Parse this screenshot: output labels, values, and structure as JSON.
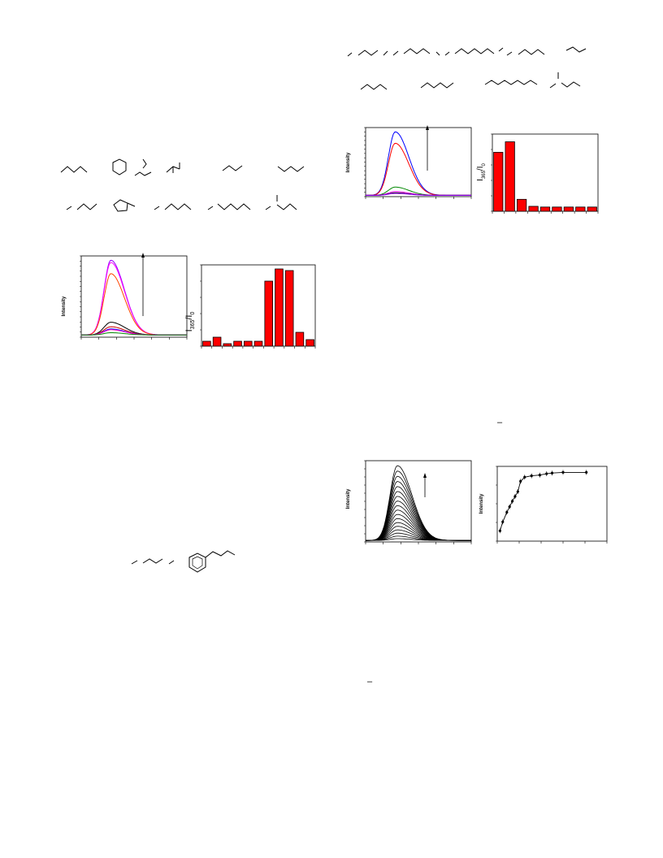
{
  "colors": {
    "bar_fill": "#ff0000",
    "bar_stroke": "#000000"
  },
  "left_column": {
    "figure_a": {
      "spectra_ylabel": "Intensity",
      "bar_ylabel_main": "I",
      "bar_ylabel_sub1": "365",
      "bar_ylabel_mid": "/I",
      "bar_ylabel_sub2": "0"
    }
  },
  "right_column": {
    "figure_b": {
      "spectra_ylabel": "Intensity",
      "bar_ylabel_main": "I",
      "bar_ylabel_sub1": "365",
      "bar_ylabel_mid": "/I",
      "bar_ylabel_sub2": "0"
    },
    "figure_c": {
      "spectra_ylabel": "Intensity",
      "titration_ylabel": "Intensity",
      "dash_mark": "–"
    },
    "bottom_dash": "–"
  },
  "chart_data": [
    {
      "type": "line",
      "panel": "figure_a_spectra",
      "series": [
        {
          "color": "#9900ff",
          "peak": 1.0
        },
        {
          "color": "#ff00ff",
          "peak": 0.97
        },
        {
          "color": "#ff4400",
          "peak": 0.82
        },
        {
          "color": "#000000",
          "peak": 0.17
        },
        {
          "color": "#cc0000",
          "peak": 0.11
        },
        {
          "color": "#0000ff",
          "peak": 0.08
        },
        {
          "color": "#ff00cc",
          "peak": 0.07
        },
        {
          "color": "#008800",
          "peak": 0.03
        }
      ]
    },
    {
      "type": "bar",
      "panel": "figure_a_bars",
      "values": [
        0.6,
        1.1,
        0.3,
        0.6,
        0.6,
        0.6,
        8.0,
        9.5,
        9.3,
        1.7,
        0.8
      ]
    },
    {
      "type": "line",
      "panel": "figure_b_spectra",
      "series": [
        {
          "color": "#0000ff",
          "peak": 1.0
        },
        {
          "color": "#ff0000",
          "peak": 0.82
        },
        {
          "color": "#008800",
          "peak": 0.13
        },
        {
          "color": "#ff00ff",
          "peak": 0.06
        },
        {
          "color": "#000000",
          "peak": 0.04
        },
        {
          "color": "#9900ff",
          "peak": 0.03
        }
      ]
    },
    {
      "type": "bar",
      "panel": "figure_b_bars",
      "values": [
        8.4,
        9.9,
        1.7,
        0.7,
        0.6,
        0.6,
        0.6,
        0.6,
        0.6
      ]
    },
    {
      "type": "line",
      "panel": "figure_c_spectra",
      "series_count": 18,
      "peak_max": 1.0
    },
    {
      "type": "scatter",
      "panel": "figure_c_titration",
      "points": [
        [
          0.02,
          0.15
        ],
        [
          0.04,
          0.28
        ],
        [
          0.07,
          0.42
        ],
        [
          0.09,
          0.5
        ],
        [
          0.11,
          0.58
        ],
        [
          0.13,
          0.65
        ],
        [
          0.15,
          0.72
        ],
        [
          0.17,
          0.87
        ],
        [
          0.2,
          0.93
        ],
        [
          0.25,
          0.95
        ],
        [
          0.31,
          0.96
        ],
        [
          0.36,
          0.98
        ],
        [
          0.4,
          0.99
        ],
        [
          0.48,
          1.0
        ],
        [
          0.65,
          1.0
        ]
      ]
    }
  ]
}
